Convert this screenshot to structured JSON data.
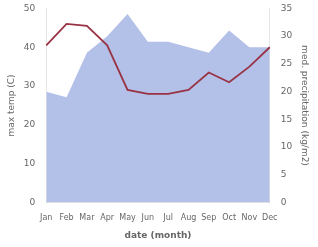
{
  "chart_data": {
    "type": "line",
    "categories": [
      "Jan",
      "Feb",
      "Mar",
      "Apr",
      "May",
      "Jun",
      "Jul",
      "Aug",
      "Sep",
      "Oct",
      "Nov",
      "Dec"
    ],
    "series": [
      {
        "type": "line",
        "color": "#993344",
        "values": [
          40.5,
          46.0,
          45.5,
          40.5,
          29.0,
          28.0,
          28.0,
          29.0,
          33.5,
          31.0,
          35.0,
          40.0
        ]
      },
      {
        "type": "area",
        "axis": "y2",
        "color": "#b3c0e8",
        "values": [
          20,
          19,
          27,
          30,
          34,
          29,
          29,
          28,
          27,
          31,
          28,
          28
        ]
      }
    ],
    "xlabel": "date (month)",
    "ylabel": "max temp (C)",
    "y2label": "med. precipitation (kg/m2)",
    "ylim": [
      0,
      50
    ],
    "yticks": [
      0,
      10,
      20,
      30,
      40,
      50
    ],
    "y2lim": [
      0,
      35
    ],
    "y2ticks": [
      0,
      5,
      10,
      15,
      20,
      25,
      30,
      35
    ],
    "grid": false
  }
}
